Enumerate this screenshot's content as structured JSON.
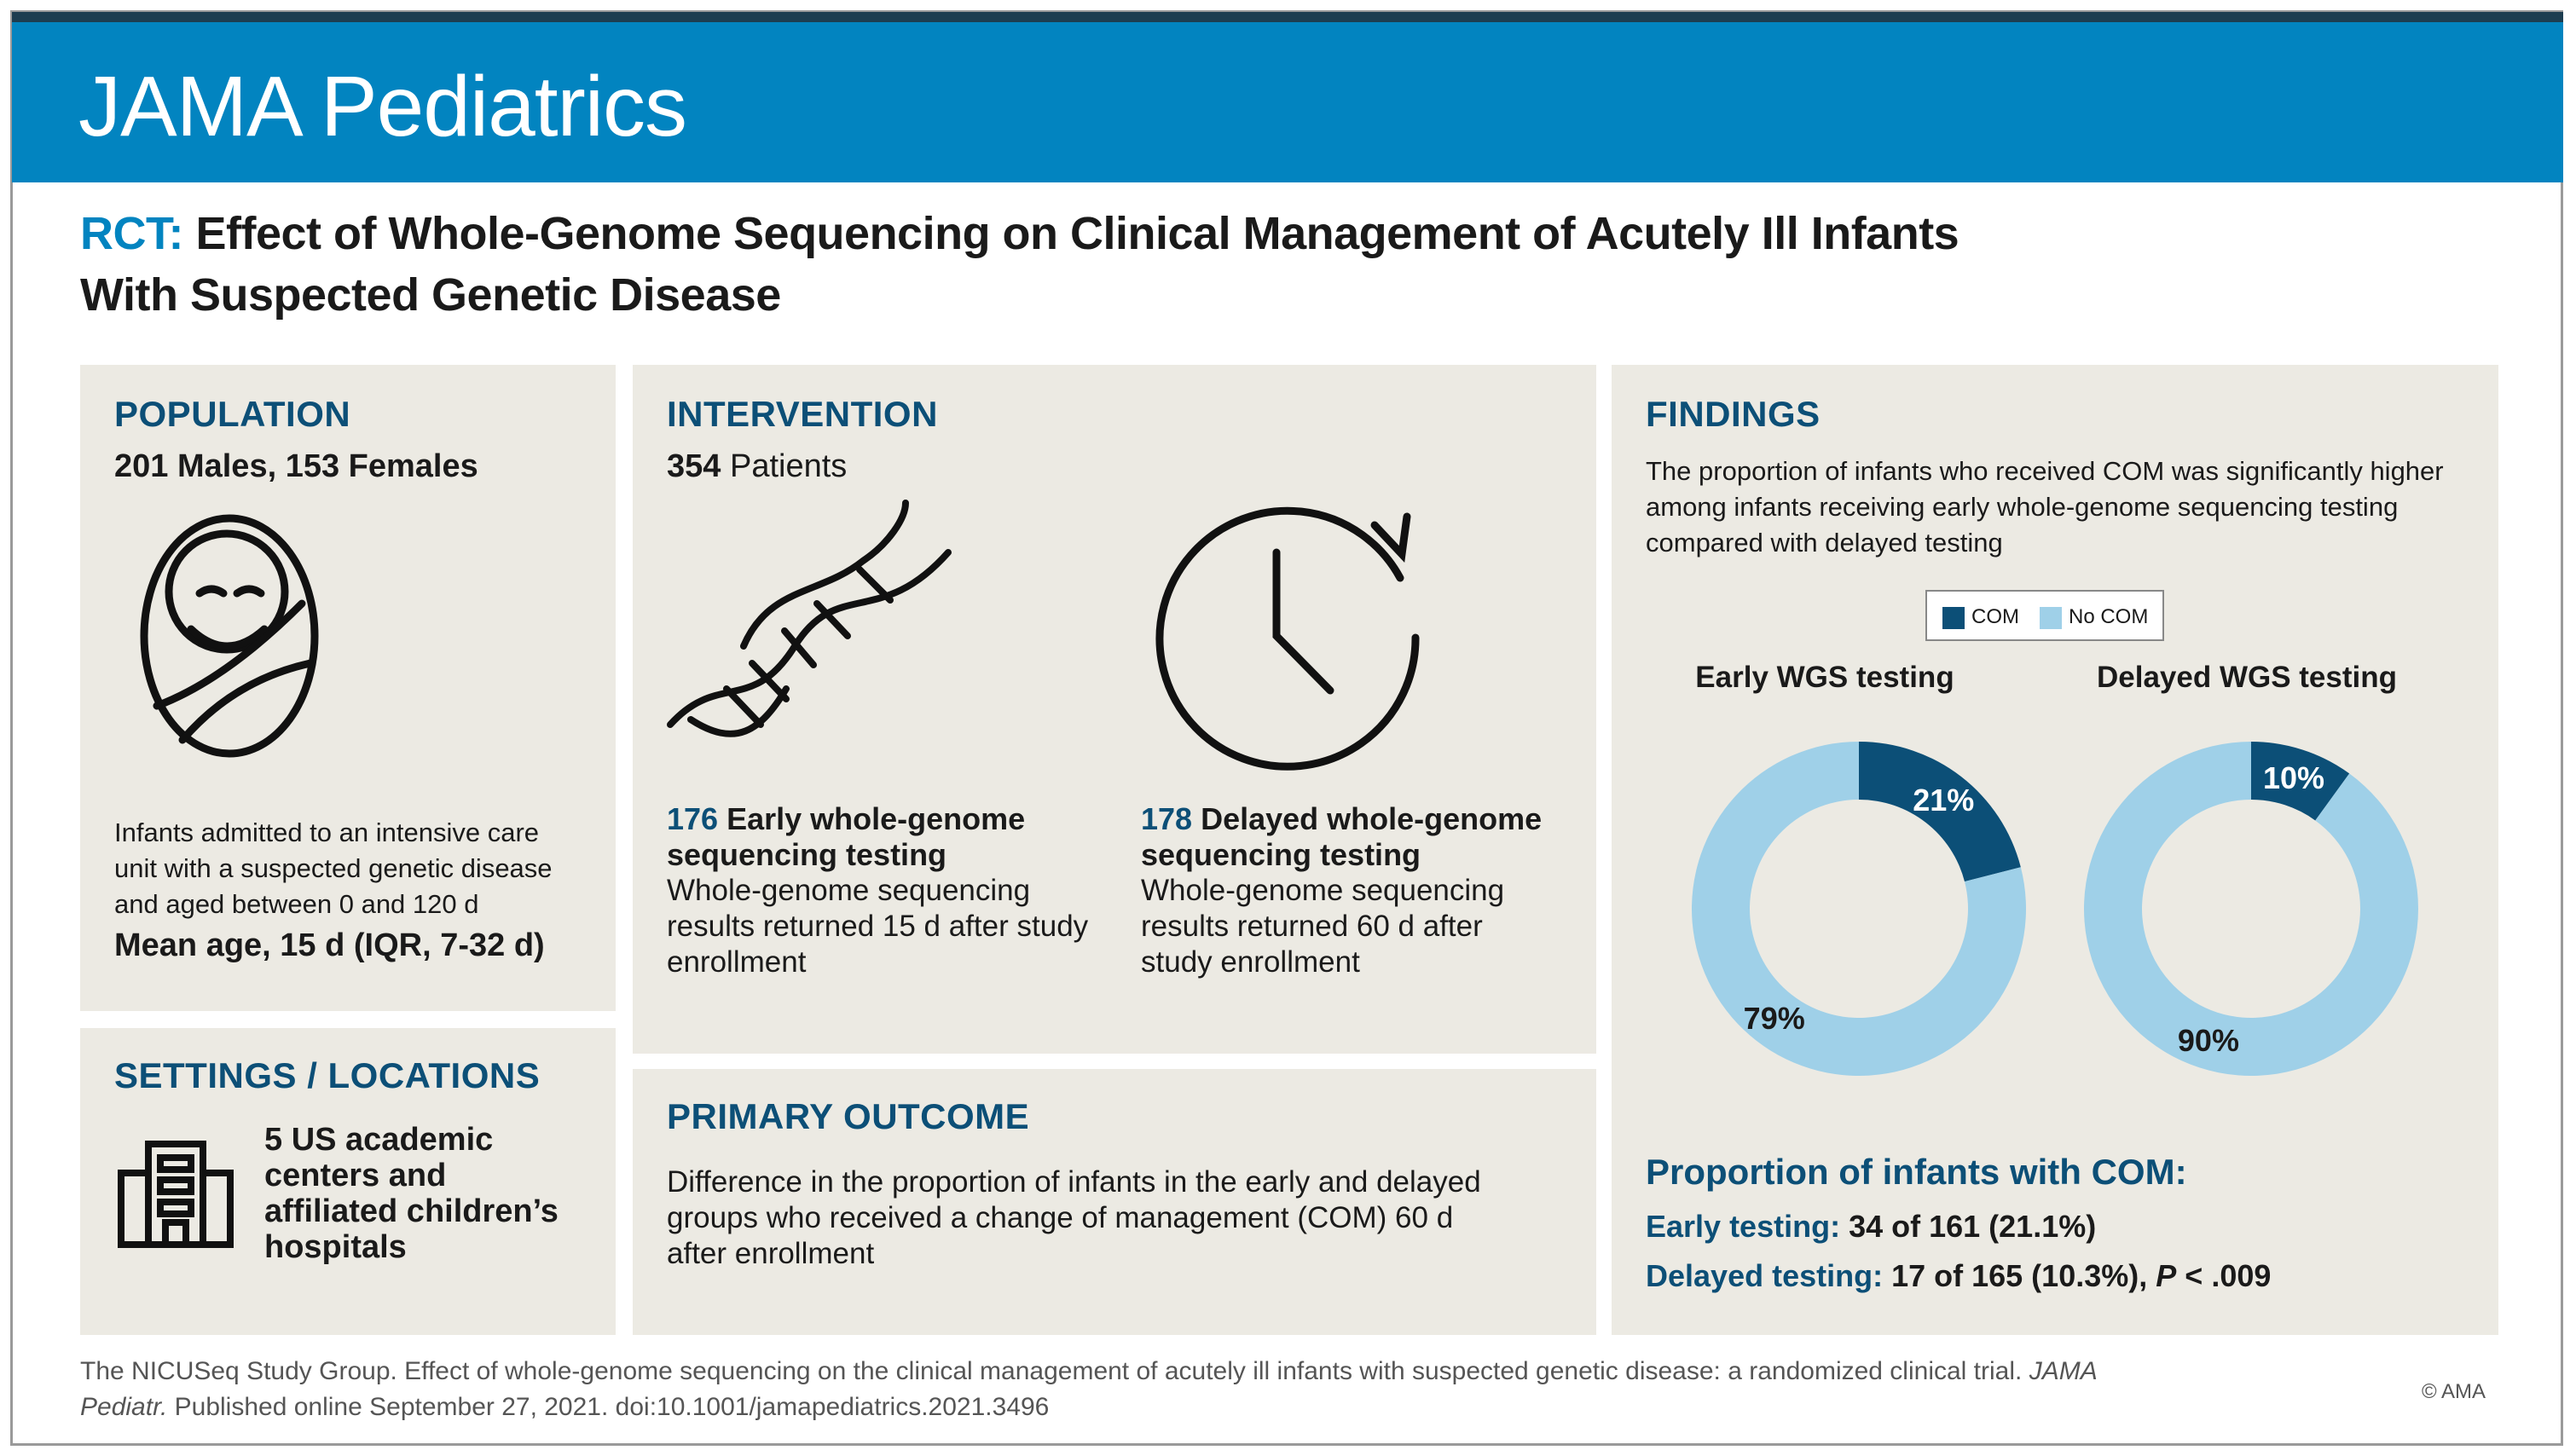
{
  "journal": "JAMA Pediatrics",
  "title": {
    "prefix": "RCT:",
    "line1": "Effect of Whole-Genome Sequencing on Clinical Management of Acutely Ill Infants",
    "line2": "With Suspected Genetic Disease"
  },
  "population": {
    "heading": "POPULATION",
    "counts": "201 Males, 153 Females",
    "icon": "swaddled-infant-icon",
    "desc1": "Infants admitted to an intensive care",
    "desc2": "unit with a suspected genetic disease",
    "desc3": "and aged between 0 and 120 d",
    "mean_age": "Mean age, 15 d (IQR, 7-32 d)"
  },
  "settings": {
    "heading": "SETTINGS / LOCATIONS",
    "icon": "building-icon",
    "line1": "5 US academic",
    "line2": "centers and",
    "line3": "affiliated children’s",
    "line4": "hospitals"
  },
  "intervention": {
    "heading": "INTERVENTION",
    "patients_num": "354",
    "patients_label": "Patients",
    "early": {
      "icon": "dna-helix-icon",
      "num": "176",
      "title1": "Early whole-genome",
      "title2": "sequencing testing",
      "desc1": "Whole-genome sequencing",
      "desc2": "results returned 15 d after study",
      "desc3": "enrollment"
    },
    "delayed": {
      "icon": "clock-icon",
      "num": "178",
      "title1": "Delayed whole-genome",
      "title2": "sequencing testing",
      "desc1": "Whole-genome sequencing",
      "desc2": "results returned 60 d after",
      "desc3": "study enrollment"
    }
  },
  "primary_outcome": {
    "heading": "PRIMARY OUTCOME",
    "line1": "Difference in the proportion of infants in the early and delayed",
    "line2": "groups who received a change of management (COM) 60 d",
    "line3": "after enrollment"
  },
  "findings": {
    "heading": "FINDINGS",
    "desc1": "The proportion of infants who received COM was significantly higher",
    "desc2": "among infants receiving early whole-genome sequencing testing",
    "desc3": "compared with delayed testing",
    "summary_title": "Proportion of infants with COM:",
    "early_label": "Early testing:",
    "early_value": "34 of 161 (21.1%)",
    "delayed_label": "Delayed testing:",
    "delayed_value": "17 of 165 (10.3%),",
    "p_label": "P",
    "p_value": "< .009"
  },
  "colors": {
    "com": "#0c4f77",
    "no_com": "#9fd0e8",
    "accent": "#0284c0"
  },
  "chart_data": [
    {
      "type": "pie",
      "title": "Early WGS testing",
      "legend": [
        "COM",
        "No COM"
      ],
      "categories": [
        "COM",
        "No COM"
      ],
      "values": [
        21,
        79
      ],
      "labels": [
        "21%",
        "79%"
      ]
    },
    {
      "type": "pie",
      "title": "Delayed WGS testing",
      "legend": [
        "COM",
        "No COM"
      ],
      "categories": [
        "COM",
        "No COM"
      ],
      "values": [
        10,
        90
      ],
      "labels": [
        "10%",
        "90%"
      ]
    }
  ],
  "footer": {
    "citation1": "The NICUSeq Study Group. Effect of whole-genome sequencing on the clinical management of acutely ill infants with suspected genetic disease: a randomized clinical trial.",
    "journal_italic1": "JAMA",
    "journal_italic2": "Pediatr.",
    "citation2": "Published online September 27, 2021. doi:10.1001/jamapediatrics.2021.3496",
    "copyright": "© AMA"
  }
}
